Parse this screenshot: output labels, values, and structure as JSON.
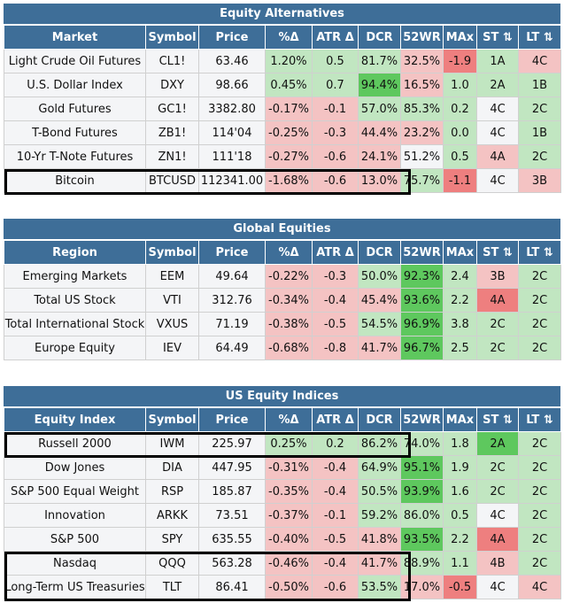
{
  "colors": {
    "header_bg": "#3e6e98",
    "header_text": "#ffffff",
    "cell_neutral": "#f4f5f7",
    "green": "#c1e6c1",
    "dark_green": "#5ec85e",
    "red": "#f4c3c3",
    "dark_red": "#ee7f7f"
  },
  "sections": [
    {
      "title": "Equity Alternatives",
      "headers": [
        "Market",
        "Symbol",
        "Price",
        "%Δ",
        "ATR Δ",
        "DCR",
        "52WR",
        "MAx",
        "ST ⇅",
        "LT ⇅"
      ],
      "rows": [
        {
          "cells": [
            "Light Crude Oil Futures",
            "CL1!",
            "63.46",
            "1.20%",
            "0.5",
            "81.7%",
            "32.5%",
            "-1.9",
            "1A",
            "4C"
          ],
          "tones": [
            "n",
            "n",
            "n",
            "g",
            "g",
            "g",
            "r",
            "dr",
            "g",
            "r"
          ]
        },
        {
          "cells": [
            "U.S. Dollar Index",
            "DXY",
            "98.66",
            "0.45%",
            "0.7",
            "94.4%",
            "16.5%",
            "1.0",
            "2A",
            "1B"
          ],
          "tones": [
            "n",
            "n",
            "n",
            "g",
            "g",
            "dg",
            "r",
            "g",
            "g",
            "g"
          ]
        },
        {
          "cells": [
            "Gold Futures",
            "GC1!",
            "3382.80",
            "-0.17%",
            "-0.1",
            "57.0%",
            "85.3%",
            "0.2",
            "4C",
            "2C"
          ],
          "tones": [
            "n",
            "n",
            "n",
            "r",
            "r",
            "g",
            "g",
            "g",
            "n",
            "g"
          ]
        },
        {
          "cells": [
            "T-Bond Futures",
            "ZB1!",
            "114'04",
            "-0.25%",
            "-0.3",
            "44.4%",
            "23.2%",
            "0.0",
            "4C",
            "1B"
          ],
          "tones": [
            "n",
            "n",
            "n",
            "r",
            "r",
            "r",
            "r",
            "g",
            "n",
            "g"
          ]
        },
        {
          "cells": [
            "10-Yr T-Note Futures",
            "ZN1!",
            "111'18",
            "-0.27%",
            "-0.6",
            "24.1%",
            "51.2%",
            "0.5",
            "4A",
            "2C"
          ],
          "tones": [
            "n",
            "n",
            "n",
            "r",
            "r",
            "r",
            "n",
            "g",
            "r",
            "g"
          ]
        },
        {
          "cells": [
            "Bitcoin",
            "BTCUSD",
            "112341.00",
            "-1.68%",
            "-0.6",
            "13.0%",
            "75.7%",
            "-1.1",
            "4C",
            "3B"
          ],
          "tones": [
            "n",
            "n",
            "n",
            "r",
            "r",
            "r",
            "g",
            "dr",
            "n",
            "r"
          ]
        }
      ]
    },
    {
      "title": "Global Equities",
      "headers": [
        "Region",
        "Symbol",
        "Price",
        "%Δ",
        "ATR Δ",
        "DCR",
        "52WR",
        "MAx",
        "ST ⇅",
        "LT ⇅"
      ],
      "rows": [
        {
          "cells": [
            "Emerging Markets",
            "EEM",
            "49.64",
            "-0.22%",
            "-0.3",
            "50.0%",
            "92.3%",
            "2.4",
            "3B",
            "2C"
          ],
          "tones": [
            "n",
            "n",
            "n",
            "r",
            "r",
            "g",
            "dg",
            "g",
            "r",
            "g"
          ]
        },
        {
          "cells": [
            "Total US Stock",
            "VTI",
            "312.76",
            "-0.34%",
            "-0.4",
            "45.4%",
            "93.6%",
            "2.2",
            "4A",
            "2C"
          ],
          "tones": [
            "n",
            "n",
            "n",
            "r",
            "r",
            "r",
            "dg",
            "g",
            "dr",
            "g"
          ]
        },
        {
          "cells": [
            "Total International Stock",
            "VXUS",
            "71.19",
            "-0.38%",
            "-0.5",
            "54.5%",
            "96.9%",
            "3.8",
            "2C",
            "2C"
          ],
          "tones": [
            "n",
            "n",
            "n",
            "r",
            "r",
            "g",
            "dg",
            "g",
            "g",
            "g"
          ]
        },
        {
          "cells": [
            "Europe Equity",
            "IEV",
            "64.49",
            "-0.68%",
            "-0.8",
            "41.7%",
            "96.7%",
            "2.5",
            "2C",
            "2C"
          ],
          "tones": [
            "n",
            "n",
            "n",
            "r",
            "r",
            "r",
            "dg",
            "g",
            "g",
            "g"
          ]
        }
      ]
    },
    {
      "title": "US Equity Indices",
      "headers": [
        "Equity Index",
        "Symbol",
        "Price",
        "%Δ",
        "ATR Δ",
        "DCR",
        "52WR",
        "MAx",
        "ST ⇅",
        "LT ⇅"
      ],
      "rows": [
        {
          "cells": [
            "Russell 2000",
            "IWM",
            "225.97",
            "0.25%",
            "0.2",
            "86.2%",
            "74.0%",
            "1.8",
            "2A",
            "2C"
          ],
          "tones": [
            "n",
            "n",
            "n",
            "g",
            "g",
            "g",
            "g",
            "g",
            "dg",
            "g"
          ]
        },
        {
          "cells": [
            "Dow Jones",
            "DIA",
            "447.95",
            "-0.31%",
            "-0.4",
            "64.9%",
            "95.1%",
            "1.9",
            "2C",
            "2C"
          ],
          "tones": [
            "n",
            "n",
            "n",
            "r",
            "r",
            "g",
            "dg",
            "g",
            "g",
            "g"
          ]
        },
        {
          "cells": [
            "S&P 500 Equal Weight",
            "RSP",
            "185.87",
            "-0.35%",
            "-0.4",
            "50.5%",
            "93.9%",
            "1.6",
            "2C",
            "2C"
          ],
          "tones": [
            "n",
            "n",
            "n",
            "r",
            "r",
            "g",
            "dg",
            "g",
            "g",
            "g"
          ]
        },
        {
          "cells": [
            "Innovation",
            "ARKK",
            "73.51",
            "-0.37%",
            "-0.1",
            "59.2%",
            "86.0%",
            "0.5",
            "4C",
            "2C"
          ],
          "tones": [
            "n",
            "n",
            "n",
            "r",
            "r",
            "g",
            "g",
            "g",
            "n",
            "g"
          ]
        },
        {
          "cells": [
            "S&P 500",
            "SPY",
            "635.55",
            "-0.40%",
            "-0.5",
            "41.8%",
            "93.5%",
            "2.2",
            "4A",
            "2C"
          ],
          "tones": [
            "n",
            "n",
            "n",
            "r",
            "r",
            "r",
            "dg",
            "g",
            "dr",
            "g"
          ]
        },
        {
          "cells": [
            "Nasdaq",
            "QQQ",
            "563.28",
            "-0.46%",
            "-0.4",
            "41.7%",
            "88.9%",
            "1.1",
            "4B",
            "2C"
          ],
          "tones": [
            "n",
            "n",
            "n",
            "r",
            "r",
            "r",
            "g",
            "g",
            "r",
            "g"
          ]
        },
        {
          "cells": [
            "Long-Term US Treasuries",
            "TLT",
            "86.41",
            "-0.50%",
            "-0.6",
            "53.5%",
            "17.0%",
            "-0.5",
            "4C",
            "4C"
          ],
          "tones": [
            "n",
            "n",
            "n",
            "r",
            "r",
            "g",
            "r",
            "dr",
            "n",
            "r"
          ]
        }
      ]
    }
  ]
}
